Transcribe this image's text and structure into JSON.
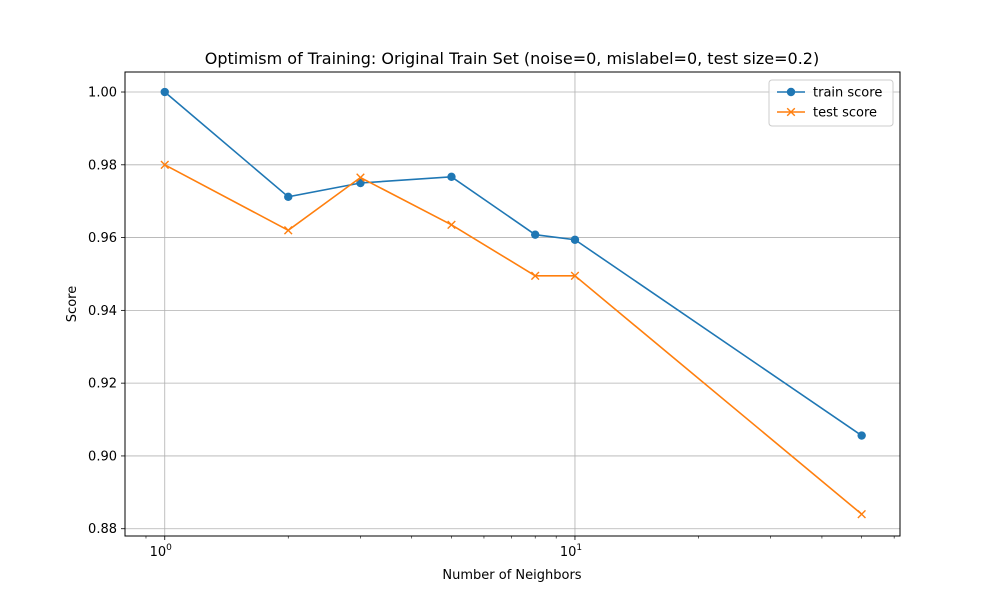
{
  "chart_data": {
    "type": "line",
    "title": "Optimism of Training: Original Train Set (noise=0, mislabel=0, test size=0.2)",
    "xlabel": "Number of Neighbors",
    "ylabel": "Score",
    "xscale": "log",
    "xlim": [
      0.8,
      62
    ],
    "ylim": [
      0.878,
      1.0055
    ],
    "x": [
      1,
      2,
      3,
      5,
      8,
      10,
      50
    ],
    "xticks": [
      {
        "value": 1,
        "base": "10",
        "exp": "0"
      },
      {
        "value": 10,
        "base": "10",
        "exp": "1"
      }
    ],
    "yticks": [
      {
        "value": 0.88,
        "label": "0.88"
      },
      {
        "value": 0.9,
        "label": "0.90"
      },
      {
        "value": 0.92,
        "label": "0.92"
      },
      {
        "value": 0.94,
        "label": "0.94"
      },
      {
        "value": 0.96,
        "label": "0.96"
      },
      {
        "value": 0.98,
        "label": "0.98"
      },
      {
        "value": 1.0,
        "label": "1.00"
      }
    ],
    "grid": true,
    "legend_position": "top-right",
    "series": [
      {
        "name": "train score",
        "marker": "circle",
        "color": "#1f77b4",
        "values": [
          1.0,
          0.9712,
          0.975,
          0.9767,
          0.9608,
          0.9594,
          0.9056
        ]
      },
      {
        "name": "test score",
        "marker": "x",
        "color": "#ff7f0e",
        "values": [
          0.98,
          0.962,
          0.9765,
          0.9635,
          0.9495,
          0.9495,
          0.884
        ]
      }
    ]
  }
}
